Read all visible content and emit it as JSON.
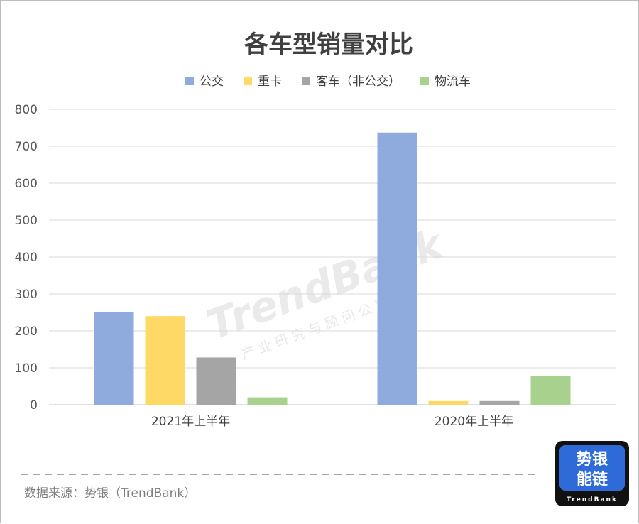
{
  "chart_data": {
    "type": "bar",
    "title": "各车型销量对比",
    "categories": [
      "2021年上半年",
      "2020年上半年"
    ],
    "series": [
      {
        "name": "公交",
        "color": "#8faadc",
        "values": [
          250,
          737
        ]
      },
      {
        "name": "重卡",
        "color": "#ffd966",
        "values": [
          240,
          10
        ]
      },
      {
        "name": "客车（非公交）",
        "color": "#a5a5a5",
        "values": [
          128,
          10
        ]
      },
      {
        "name": "物流车",
        "color": "#a9d18e",
        "values": [
          20,
          78
        ]
      }
    ],
    "ylim": [
      0,
      800
    ],
    "yticks": [
      0,
      100,
      200,
      300,
      400,
      500,
      600,
      700,
      800
    ],
    "grid": true,
    "legend_position": "top-center"
  },
  "source": "数据来源：势银（TrendBank）",
  "watermark": {
    "main": "TrendBank",
    "sub": "产业研究与顾问公司"
  },
  "logo": {
    "line1": "势银",
    "line2": "能链",
    "brand": "TrendBank"
  }
}
